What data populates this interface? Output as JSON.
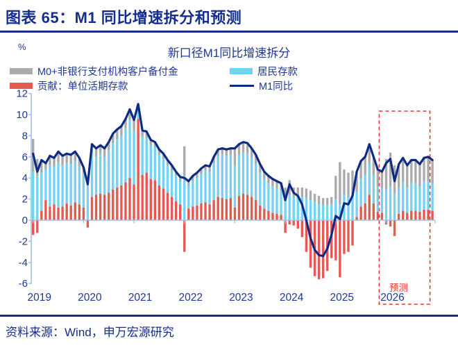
{
  "header": {
    "title": "图表 65：M1 同比增速拆分和预测"
  },
  "chart": {
    "unit_label": "%",
    "title": "新口径M1同比增速拆分",
    "legend": {
      "m0": "M0+非银行支付机构客户备付金",
      "household": "居民存款",
      "corporate": "贡献：单位活期存款",
      "m1": "M1同比"
    },
    "forecast_label": "预测",
    "colors": {
      "bar_gray": "#ababab",
      "bar_blue": "#76d2f4",
      "bar_red": "#e45a53",
      "line_navy": "#0d2b86",
      "axis_blue": "#9cc3e6",
      "text_navy": "#1f3897",
      "forecast_red": "#e8342c"
    }
  },
  "chart_data": {
    "type": "stacked_bar_line",
    "frequency": "monthly",
    "x_start": "2019-01",
    "x_end": "2026-12",
    "x_tick_labels": [
      "2019",
      "2020",
      "2021",
      "2022",
      "2023",
      "2024",
      "2025",
      "2026"
    ],
    "y_ticks": [
      12,
      10,
      8,
      6,
      4,
      2,
      0,
      -2,
      -4,
      -6
    ],
    "ylim": [
      -6,
      12
    ],
    "grid": false,
    "legend_position": "top",
    "forecast_window": {
      "start": "2025-12",
      "end": "2026-12",
      "start_index": 83,
      "end_index": 95
    },
    "series": [
      {
        "name": "贡献：单位活期存款",
        "type": "bar",
        "color": "#e45a53",
        "values": [
          -1.4,
          -1.2,
          0.9,
          1.9,
          1.3,
          1.5,
          1.2,
          1.3,
          1.6,
          1.4,
          1.7,
          1.5,
          1.2,
          -0.7,
          2.2,
          2.4,
          2.5,
          2.4,
          2.6,
          2.9,
          3.1,
          3.3,
          3.6,
          4.0,
          3.4,
          9.6,
          4.3,
          4.5,
          3.9,
          3.8,
          3.3,
          3.0,
          2.6,
          2.2,
          1.8,
          1.5,
          -3.0,
          1.1,
          1.3,
          1.4,
          1.6,
          1.7,
          1.5,
          1.9,
          2.2,
          2.1,
          2.0,
          2.1,
          1.2,
          2.3,
          2.5,
          2.4,
          2.2,
          1.9,
          1.4,
          1.1,
          0.9,
          0.7,
          0.6,
          0.5,
          -1.2,
          -0.4,
          -0.5,
          -0.8,
          -1.6,
          -3.0,
          -4.5,
          -5.3,
          -5.6,
          -5.5,
          -4.8,
          -3.6,
          -3.8,
          -5.4,
          -3.2,
          -3.0,
          -2.4,
          0.3,
          1.3,
          1.6,
          2.4,
          1.6,
          0.8,
          0.7,
          -0.4,
          -0.6,
          -1.5,
          0.6,
          0.9,
          0.7,
          0.9,
          0.9,
          0.8,
          1.0,
          1.0,
          0.9
        ]
      },
      {
        "name": "居民存款",
        "type": "bar",
        "color": "#76d2f4",
        "values": [
          4.6,
          4.2,
          3.6,
          2.9,
          3.9,
          3.6,
          4.3,
          3.9,
          3.8,
          3.9,
          3.9,
          3.6,
          3.2,
          3.5,
          4.2,
          3.6,
          3.8,
          3.6,
          4.0,
          4.4,
          4.6,
          4.7,
          5.1,
          5.5,
          5.1,
          1.4,
          3.6,
          3.3,
          3.2,
          3.1,
          2.9,
          2.8,
          2.6,
          2.5,
          2.4,
          2.2,
          4.2,
          2.2,
          2.4,
          2.6,
          2.8,
          3.0,
          3.1,
          3.5,
          3.9,
          4.1,
          4.1,
          4.1,
          4.0,
          3.9,
          3.9,
          3.9,
          3.7,
          3.5,
          3.1,
          2.8,
          2.6,
          2.5,
          2.4,
          2.3,
          2.2,
          2.4,
          2.2,
          2.2,
          2.2,
          2.1,
          1.9,
          1.7,
          1.5,
          1.4,
          1.4,
          1.5,
          2.0,
          1.5,
          2.4,
          2.2,
          2.3,
          2.4,
          2.6,
          2.7,
          3.0,
          2.7,
          2.4,
          2.3,
          2.9,
          3.2,
          2.6,
          2.5,
          2.7,
          2.4,
          2.6,
          2.6,
          2.4,
          2.7,
          2.7,
          2.6
        ]
      },
      {
        "name": "M0+非银行支付机构客户备付金",
        "type": "bar",
        "color": "#ababab",
        "values": [
          3.1,
          1.6,
          1.2,
          0.6,
          0.9,
          0.8,
          1.0,
          0.9,
          0.9,
          0.9,
          0.9,
          0.8,
          0.6,
          0.6,
          0.8,
          0.8,
          0.8,
          0.8,
          0.8,
          0.9,
          0.9,
          0.9,
          0.9,
          1.0,
          1.0,
          0.0,
          0.6,
          0.6,
          0.5,
          0.5,
          0.5,
          0.5,
          0.5,
          0.5,
          0.4,
          0.4,
          2.8,
          0.4,
          0.5,
          0.5,
          0.5,
          0.5,
          0.5,
          0.6,
          0.6,
          0.6,
          0.6,
          0.6,
          1.6,
          1.0,
          1.0,
          1.0,
          0.9,
          0.8,
          0.8,
          0.7,
          0.7,
          0.7,
          0.7,
          0.7,
          0.9,
          1.4,
          0.9,
          0.9,
          0.9,
          0.9,
          0.9,
          0.8,
          0.8,
          0.7,
          0.7,
          0.7,
          2.2,
          4.0,
          2.4,
          2.3,
          2.4,
          1.9,
          1.7,
          1.7,
          1.8,
          1.7,
          1.6,
          1.6,
          2.9,
          3.2,
          2.6,
          2.2,
          2.3,
          2.1,
          2.2,
          2.2,
          2.1,
          2.2,
          2.3,
          2.2
        ]
      },
      {
        "name": "M1同比",
        "type": "line",
        "color": "#0d2b86",
        "values": [
          6.3,
          4.6,
          5.7,
          5.4,
          6.1,
          5.9,
          6.5,
          6.1,
          6.3,
          6.2,
          6.5,
          5.9,
          5.0,
          3.4,
          7.2,
          6.8,
          7.1,
          6.8,
          7.4,
          8.2,
          8.6,
          8.9,
          9.6,
          10.5,
          9.5,
          11.0,
          8.5,
          8.4,
          7.6,
          7.4,
          6.7,
          6.3,
          5.7,
          5.2,
          4.6,
          4.1,
          4.0,
          3.7,
          4.2,
          4.5,
          4.9,
          5.2,
          5.1,
          6.0,
          6.7,
          6.8,
          6.7,
          6.8,
          6.8,
          7.2,
          7.4,
          7.3,
          6.8,
          6.2,
          5.3,
          4.6,
          4.2,
          3.9,
          3.7,
          3.5,
          1.9,
          3.4,
          2.6,
          2.3,
          1.5,
          0.0,
          -1.7,
          -2.8,
          -3.3,
          -3.4,
          -2.7,
          -1.4,
          0.4,
          0.1,
          1.6,
          1.5,
          2.3,
          4.6,
          5.6,
          6.0,
          7.2,
          6.0,
          4.8,
          4.6,
          5.4,
          5.8,
          3.7,
          5.3,
          5.9,
          5.2,
          5.7,
          5.7,
          5.3,
          5.9,
          6.0,
          5.7
        ]
      }
    ]
  },
  "footer": {
    "source": "资料来源：Wind，申万宏源研究"
  }
}
